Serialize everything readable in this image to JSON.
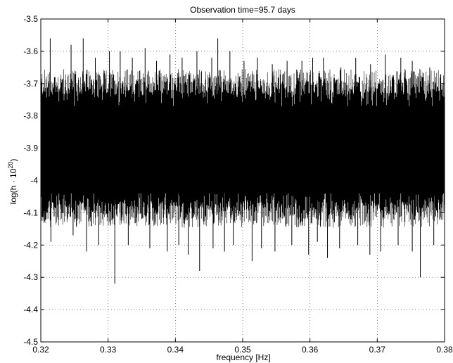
{
  "chart_data": {
    "type": "line",
    "title": "Observation time=95.7 days",
    "xlabel": "frequency [Hz]",
    "ylabel_prefix": "log(h · 10",
    "ylabel_sup": "20",
    "ylabel_suffix": ")",
    "xlim": [
      0.32,
      0.38
    ],
    "ylim": [
      -4.5,
      -3.5
    ],
    "x_ticks": [
      0.32,
      0.33,
      0.34,
      0.35,
      0.36,
      0.37,
      0.38
    ],
    "x_tick_labels": [
      "0.32",
      "0.33",
      "0.34",
      "0.35",
      "0.36",
      "0.37",
      "0.38"
    ],
    "y_ticks": [
      -3.5,
      -3.6,
      -3.7,
      -3.8,
      -3.9,
      -4,
      -4.1,
      -4.2,
      -4.3,
      -4.4,
      -4.5
    ],
    "y_tick_labels": [
      "-3.5",
      "-3.6",
      "-3.7",
      "-3.8",
      "-3.9",
      "-4",
      "-4.1",
      "-4.2",
      "-4.3",
      "-4.4",
      "-4.5"
    ],
    "grid": true,
    "grid_style": "dotted",
    "line_color": "#000000",
    "series": [
      {
        "description_values": "dense noise spectrum",
        "band_upper": -3.71,
        "band_lower": -4.09,
        "core_upper": -3.77,
        "core_lower": -4.04,
        "spikes_up": [
          [
            0.3214,
            -3.56
          ],
          [
            0.3245,
            -3.58
          ],
          [
            0.3263,
            -3.56
          ],
          [
            0.3281,
            -3.62
          ],
          [
            0.3302,
            -3.6
          ],
          [
            0.3318,
            -3.6
          ],
          [
            0.3336,
            -3.62
          ],
          [
            0.3355,
            -3.59
          ],
          [
            0.3372,
            -3.63
          ],
          [
            0.3392,
            -3.61
          ],
          [
            0.341,
            -3.62
          ],
          [
            0.3432,
            -3.6
          ],
          [
            0.3454,
            -3.62
          ],
          [
            0.3463,
            -3.56
          ],
          [
            0.3481,
            -3.6
          ],
          [
            0.3502,
            -3.63
          ],
          [
            0.3522,
            -3.62
          ],
          [
            0.3544,
            -3.64
          ],
          [
            0.3566,
            -3.63
          ],
          [
            0.3588,
            -3.63
          ],
          [
            0.3604,
            -3.62
          ],
          [
            0.362,
            -3.62
          ],
          [
            0.3646,
            -3.65
          ],
          [
            0.3668,
            -3.62
          ],
          [
            0.369,
            -3.64
          ],
          [
            0.3712,
            -3.61
          ],
          [
            0.3735,
            -3.62
          ],
          [
            0.3752,
            -3.63
          ],
          [
            0.3778,
            -3.65
          ]
        ],
        "spikes_down": [
          [
            0.3215,
            -4.19
          ],
          [
            0.3248,
            -4.17
          ],
          [
            0.3268,
            -4.22
          ],
          [
            0.3286,
            -4.2
          ],
          [
            0.331,
            -4.32
          ],
          [
            0.333,
            -4.2
          ],
          [
            0.3362,
            -4.21
          ],
          [
            0.3388,
            -4.22
          ],
          [
            0.3405,
            -4.2
          ],
          [
            0.3419,
            -4.23
          ],
          [
            0.3436,
            -4.28
          ],
          [
            0.3456,
            -4.21
          ],
          [
            0.3473,
            -4.22
          ],
          [
            0.3486,
            -4.2
          ],
          [
            0.3514,
            -4.25
          ],
          [
            0.3528,
            -4.21
          ],
          [
            0.3548,
            -4.22
          ],
          [
            0.3573,
            -4.2
          ],
          [
            0.3598,
            -4.23
          ],
          [
            0.3611,
            -4.19
          ],
          [
            0.3626,
            -4.24
          ],
          [
            0.3644,
            -4.21
          ],
          [
            0.3671,
            -4.2
          ],
          [
            0.3689,
            -4.23
          ],
          [
            0.3705,
            -4.22
          ],
          [
            0.3731,
            -4.2
          ],
          [
            0.3752,
            -4.22
          ],
          [
            0.3764,
            -4.3
          ],
          [
            0.3784,
            -4.2
          ]
        ]
      }
    ]
  }
}
